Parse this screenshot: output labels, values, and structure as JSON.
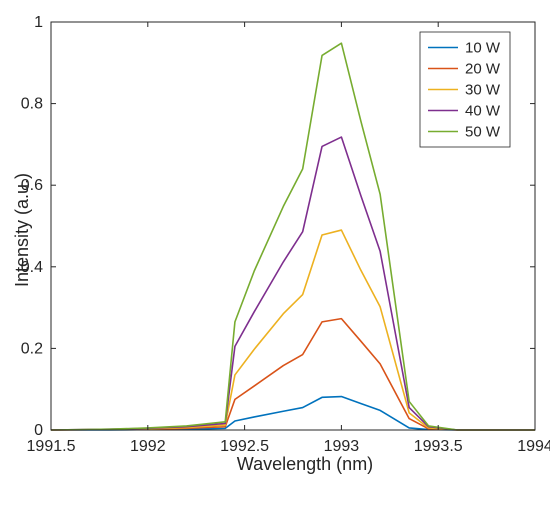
{
  "chart_data": {
    "type": "line",
    "xlabel": "Wavelength (nm)",
    "ylabel": "Intensity (a.u.)",
    "xlim": [
      1991.5,
      1994
    ],
    "ylim": [
      0,
      1
    ],
    "x_ticks": [
      1991.5,
      1992,
      1992.5,
      1993,
      1993.5,
      1994
    ],
    "x_tick_labels": [
      "1991.5",
      "1992",
      "1992.5",
      "1993",
      "1993.5",
      "1994"
    ],
    "y_ticks": [
      0,
      0.2,
      0.4,
      0.6,
      0.8,
      1
    ],
    "y_tick_labels": [
      "0",
      "0.2",
      "0.4",
      "0.6",
      "0.8",
      "1"
    ],
    "grid": false,
    "legend_position": "top-right",
    "x": [
      1991.5,
      1991.8,
      1992.0,
      1992.2,
      1992.4,
      1992.45,
      1992.55,
      1992.7,
      1992.8,
      1992.9,
      1993.0,
      1993.1,
      1993.2,
      1993.35,
      1993.45,
      1993.6,
      1994.0
    ],
    "series": [
      {
        "name": "10 W",
        "color": "#0072BD",
        "values": [
          0.0,
          0.0,
          0.001,
          0.002,
          0.004,
          0.022,
          0.032,
          0.046,
          0.055,
          0.08,
          0.082,
          0.065,
          0.048,
          0.005,
          0.001,
          0.0,
          0.0
        ]
      },
      {
        "name": "20 W",
        "color": "#D95319",
        "values": [
          0.0,
          0.001,
          0.002,
          0.004,
          0.008,
          0.075,
          0.108,
          0.158,
          0.185,
          0.265,
          0.273,
          0.218,
          0.162,
          0.028,
          0.003,
          0.0,
          0.0
        ]
      },
      {
        "name": "30 W",
        "color": "#EDB120",
        "values": [
          0.0,
          0.001,
          0.003,
          0.006,
          0.012,
          0.135,
          0.198,
          0.285,
          0.332,
          0.478,
          0.49,
          0.392,
          0.302,
          0.042,
          0.005,
          0.0,
          0.0
        ]
      },
      {
        "name": "40 W",
        "color": "#7E2F8E",
        "values": [
          0.0,
          0.002,
          0.004,
          0.008,
          0.016,
          0.205,
          0.29,
          0.412,
          0.486,
          0.695,
          0.718,
          0.575,
          0.438,
          0.055,
          0.008,
          0.0,
          0.0
        ]
      },
      {
        "name": "50 W",
        "color": "#77AC30",
        "values": [
          0.0,
          0.002,
          0.005,
          0.01,
          0.02,
          0.265,
          0.39,
          0.548,
          0.64,
          0.918,
          0.948,
          0.758,
          0.578,
          0.07,
          0.01,
          0.0,
          0.0
        ]
      }
    ]
  }
}
